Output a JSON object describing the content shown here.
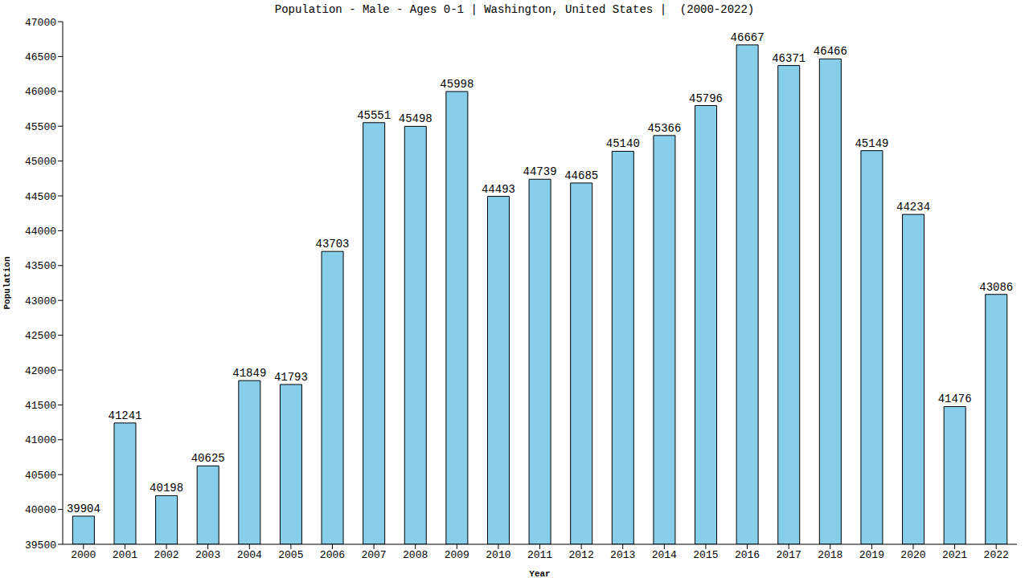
{
  "chart_data": {
    "type": "bar",
    "title": "Population - Male - Ages 0-1 | Washington, United States |  (2000-2022)",
    "x_label": "Year",
    "y_label": "Population",
    "categories": [
      "2000",
      "2001",
      "2002",
      "2003",
      "2004",
      "2005",
      "2006",
      "2007",
      "2008",
      "2009",
      "2010",
      "2011",
      "2012",
      "2013",
      "2014",
      "2015",
      "2016",
      "2017",
      "2018",
      "2019",
      "2020",
      "2021",
      "2022"
    ],
    "values": [
      39904,
      41241,
      40198,
      40625,
      41849,
      41793,
      43703,
      45551,
      45498,
      45998,
      44493,
      44739,
      44685,
      45140,
      45366,
      45796,
      46667,
      46371,
      46466,
      45149,
      44234,
      41476,
      43086
    ],
    "color": "#87ceeb",
    "ylim": [
      39500,
      47000
    ],
    "yticks": [
      39500,
      40000,
      40500,
      41000,
      41500,
      42000,
      42500,
      43000,
      43500,
      44000,
      44500,
      45000,
      45500,
      46000,
      46500,
      47000
    ],
    "grid": false,
    "data_labels": true
  }
}
